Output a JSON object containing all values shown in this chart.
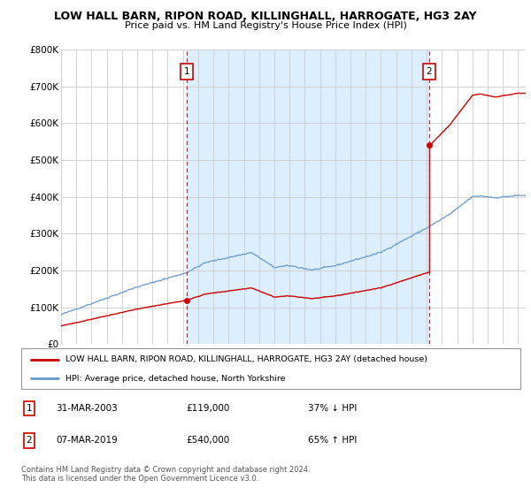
{
  "title": "LOW HALL BARN, RIPON ROAD, KILLINGHALL, HARROGATE, HG3 2AY",
  "subtitle": "Price paid vs. HM Land Registry's House Price Index (HPI)",
  "background_color": "#ffffff",
  "plot_bg_color": "#ffffff",
  "shade_color": "#ddeeff",
  "grid_color": "#cccccc",
  "hpi_color": "#6699cc",
  "price_color": "#cc0000",
  "dashed_line_color": "#cc0000",
  "legend_label_price": "LOW HALL BARN, RIPON ROAD, KILLINGHALL, HARROGATE, HG3 2AY (detached house)",
  "legend_label_hpi": "HPI: Average price, detached house, North Yorkshire",
  "table_row1": [
    "1",
    "31-MAR-2003",
    "£119,000",
    "37% ↓ HPI"
  ],
  "table_row2": [
    "2",
    "07-MAR-2019",
    "£540,000",
    "65% ↑ HPI"
  ],
  "footnote": "Contains HM Land Registry data © Crown copyright and database right 2024.\nThis data is licensed under the Open Government Licence v3.0.",
  "ylim": [
    0,
    800000
  ],
  "yticks": [
    0,
    100000,
    200000,
    300000,
    400000,
    500000,
    600000,
    700000,
    800000
  ],
  "ytick_labels": [
    "£0",
    "£100K",
    "£200K",
    "£300K",
    "£400K",
    "£500K",
    "£600K",
    "£700K",
    "£800K"
  ],
  "sale1_x": 2003.25,
  "sale1_y": 119000,
  "sale2_x": 2019.17,
  "sale2_y": 540000,
  "xmin": 1995,
  "xmax": 2025.5
}
